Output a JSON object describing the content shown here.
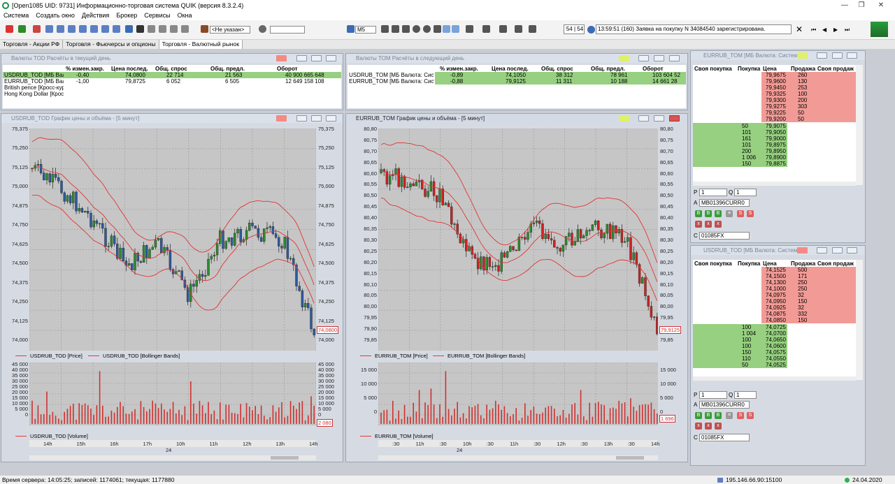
{
  "app": {
    "title": "[Open1085 UID: 9731] Информационно-торговая система QUIK (версия 8.3.2.4)"
  },
  "menu": [
    "Система",
    "Создать окно",
    "Действия",
    "Брокер",
    "Сервисы",
    "Окна"
  ],
  "toolbar": {
    "account_select": "<Не указан>",
    "interval": "M5",
    "counter": "54 | 54",
    "message": "13:59:51  (160) Заявка на покупку N 34084540 зарегистрирована."
  },
  "tabs": [
    "Торговля - Акции РФ",
    "Торговля - Фьючерсы и опционы",
    "Торговля - Валютный рынок"
  ],
  "colors": {
    "window_bg": "#d6dbe3",
    "grid_green": "#96d080",
    "grid_red": "#f29b96",
    "chart_bg": "#c6c6c6",
    "candle_up": "#2e8b2e",
    "candle_down": "#cc2222",
    "bollinger": "#e33333",
    "volume": "#d03030"
  },
  "tod_window": {
    "title": "Валюты TOD Расчёты в текущий день",
    "headers": [
      "% измен.закр.",
      "Цена послед.",
      "Общ. спрос",
      "Общ. предл.",
      "Оборот"
    ],
    "rows": [
      {
        "name": "USDRUB_TOD [МБ Валю",
        "chg": "-0,40",
        "last": "74,0800",
        "bid": "22 714",
        "ask": "21 563",
        "turnover": "40 900 665 648"
      },
      {
        "name": "EURRUB_TOD [МБ Валк",
        "chg": "-1,00",
        "last": "79,8725",
        "bid": "6 052",
        "ask": "6 505",
        "turnover": "12 649 158 108"
      },
      {
        "name": "British pence [Кросс-курс",
        "chg": "",
        "last": "",
        "bid": "",
        "ask": "",
        "turnover": ""
      },
      {
        "name": "Hong Kong Dollar [Кросс-",
        "chg": "",
        "last": "",
        "bid": "",
        "ask": "",
        "turnover": ""
      }
    ]
  },
  "tom_window": {
    "title": "Валюты TOM Расчёты в следующий день",
    "headers": [
      "% измен.закр.",
      "Цена послед.",
      "Общ. спрос",
      "Общ. предл.",
      "Оборот"
    ],
    "rows": [
      {
        "name": "USDRUB_TOM [МБ Валюта: Системн",
        "chg": "-0,89",
        "last": "74,1050",
        "bid": "38 312",
        "ask": "78 961",
        "turnover": "103 604 52"
      },
      {
        "name": "EURRUB_TOM [МБ Валюта: Системн",
        "chg": "-0,88",
        "last": "79,9125",
        "bid": "11 311",
        "ask": "10 188",
        "turnover": "14 661 28"
      }
    ]
  },
  "chart_usd": {
    "title": "USDRUB_TOD График цены и объёма - [5 минут]",
    "price_ticks": [
      "75,375",
      "75,250",
      "75,125",
      "75,000",
      "74,875",
      "74,750",
      "74,625",
      "74,500",
      "74,375",
      "74,250",
      "74,125",
      "74,000"
    ],
    "last_price": "74,0800",
    "legend_price": "USDRUB_TOD [Price]",
    "legend_bb": "USDRUB_TOD [Bollinger Bands]",
    "vol_ticks": [
      "45 000",
      "40 000",
      "35 000",
      "30 000",
      "25 000",
      "20 000",
      "15 000",
      "10 000",
      "5 000",
      "0"
    ],
    "vol_tag": "2 080",
    "legend_vol": "USDRUB_TOD [Volume]",
    "time_ticks": [
      "14h",
      "15h",
      "16h",
      "17h",
      "10h",
      "11h",
      "12h",
      "13h",
      "14h"
    ],
    "day": "24"
  },
  "chart_eur": {
    "title": "EURRUB_TOM График цены и объёма - [5 минут]",
    "price_ticks": [
      "80,80",
      "80,75",
      "80,70",
      "80,65",
      "80,60",
      "80,55",
      "80,50",
      "80,45",
      "80,40",
      "80,35",
      "80,30",
      "80,25",
      "80,20",
      "80,15",
      "80,10",
      "80,05",
      "80,00",
      "79,95",
      "79,90",
      "79,85"
    ],
    "last_price": "79,9125",
    "legend_price": "EURRUB_TOM [Price]",
    "legend_bb": "EURRUB_TOM [Bollinger Bands]",
    "vol_ticks": [
      "15 000",
      "10 000",
      "5 000",
      "0"
    ],
    "vol_tag": "1 696",
    "legend_vol": "EURRUB_TOM [Volume]",
    "time_ticks": [
      ":30",
      "11h",
      ":30",
      "10h",
      ":30",
      "11h",
      ":30",
      "12h",
      ":30",
      "13h",
      ":30",
      "14h"
    ],
    "day": "24"
  },
  "book_eur": {
    "title": "EURRUB_TOM [МБ Валюта: Системн",
    "headers": [
      "Своя покупка",
      "Покупка",
      "Цена",
      "Продажа",
      "Своя продаж"
    ],
    "asks": [
      [
        "79,9675",
        "260"
      ],
      [
        "79,9600",
        "130"
      ],
      [
        "79,9450",
        "253"
      ],
      [
        "79,9325",
        "100"
      ],
      [
        "79,9300",
        "200"
      ],
      [
        "79,9275",
        "303"
      ],
      [
        "79,9225",
        "50"
      ],
      [
        "79,9200",
        "50"
      ]
    ],
    "bids": [
      [
        "50",
        "79,9075"
      ],
      [
        "101",
        "79,9050"
      ],
      [
        "161",
        "79,9000"
      ],
      [
        "101",
        "79,8975"
      ],
      [
        "200",
        "79,8950"
      ],
      [
        "1 006",
        "79,8900"
      ],
      [
        "150",
        "79,8875"
      ]
    ],
    "p_label": "P",
    "p_val": "1",
    "q_label": "Q",
    "q_val": "1",
    "a_label": "A",
    "a_val": "MB01396CURR0",
    "c_label": "C",
    "c_val": "01085FX"
  },
  "book_usd": {
    "title": "USDRUB_TOD [МБ Валюта: Системн",
    "headers": [
      "Своя покупка",
      "Покупка",
      "Цена",
      "Продажа",
      "Своя продаж"
    ],
    "asks": [
      [
        "74,1525",
        "500"
      ],
      [
        "74,1500",
        "171"
      ],
      [
        "74,1300",
        "250"
      ],
      [
        "74,1000",
        "250"
      ],
      [
        "74,0975",
        "32"
      ],
      [
        "74,0950",
        "150"
      ],
      [
        "74,0925",
        "32"
      ],
      [
        "74,0875",
        "332"
      ],
      [
        "74,0850",
        "150"
      ]
    ],
    "bids": [
      [
        "100",
        "74,0725"
      ],
      [
        "1 004",
        "74,0700"
      ],
      [
        "100",
        "74,0650"
      ],
      [
        "100",
        "74,0600"
      ],
      [
        "150",
        "74,0575"
      ],
      [
        "110",
        "74,0550"
      ],
      [
        "50",
        "74,0525"
      ]
    ],
    "p_label": "P",
    "p_val": "1",
    "q_label": "Q",
    "q_val": "1",
    "a_label": "A",
    "a_val": "MB01396CURR0",
    "c_label": "C",
    "c_val": "01085FX"
  },
  "status": {
    "left": "Время сервера: 14:05:25; записей: 1174061; текущая: 1177880",
    "ip": "195.146.66.90:15100",
    "date": "24.04.2020"
  }
}
